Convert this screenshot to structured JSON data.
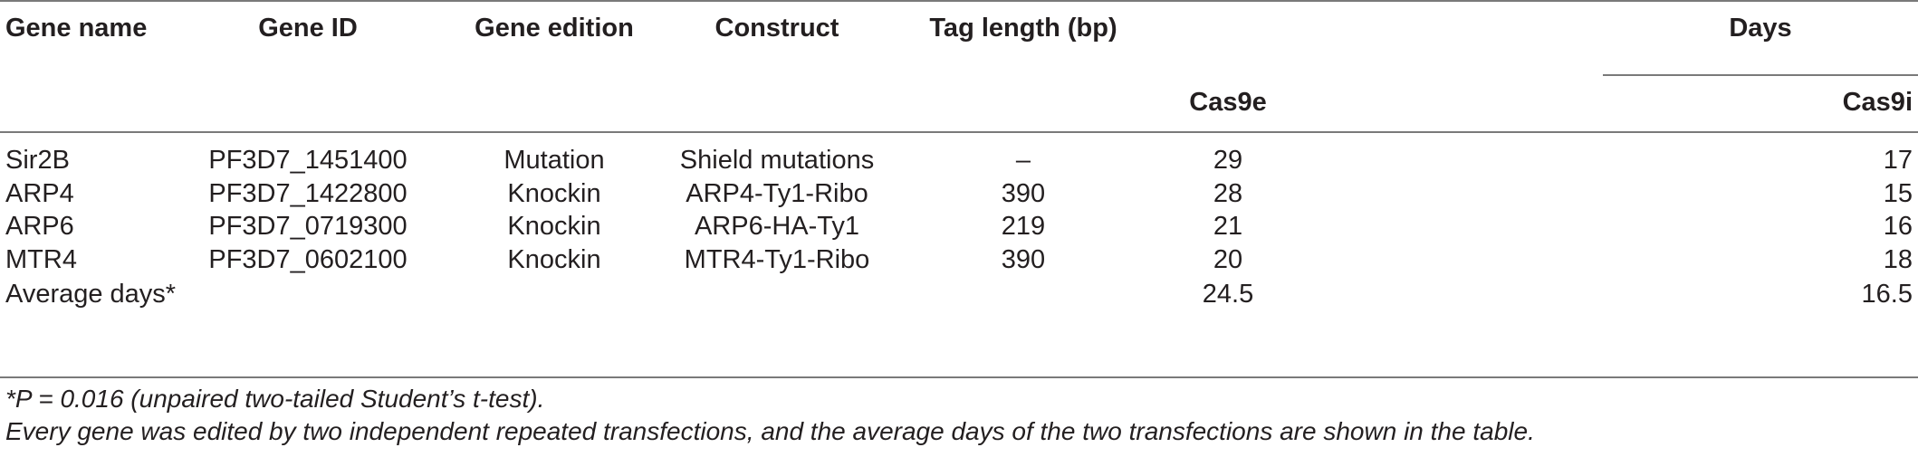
{
  "table": {
    "headers": {
      "gene_name": "Gene name",
      "gene_id": "Gene ID",
      "gene_edition": "Gene edition",
      "construct": "Construct",
      "tag_length": "Tag length (bp)",
      "days": "Days",
      "cas9e": "Cas9e",
      "cas9i": "Cas9i"
    },
    "rows": [
      {
        "gene_name": "Sir2B",
        "gene_id": "PF3D7_1451400",
        "gene_edition": "Mutation",
        "construct": "Shield mutations",
        "tag_length": "–",
        "cas9e": "29",
        "cas9i": "17"
      },
      {
        "gene_name": "ARP4",
        "gene_id": "PF3D7_1422800",
        "gene_edition": "Knockin",
        "construct": "ARP4-Ty1-Ribo",
        "tag_length": "390",
        "cas9e": "28",
        "cas9i": "15"
      },
      {
        "gene_name": "ARP6",
        "gene_id": "PF3D7_0719300",
        "gene_edition": "Knockin",
        "construct": "ARP6-HA-Ty1",
        "tag_length": "219",
        "cas9e": "21",
        "cas9i": "16"
      },
      {
        "gene_name": "MTR4",
        "gene_id": "PF3D7_0602100",
        "gene_edition": "Knockin",
        "construct": "MTR4-Ty1-Ribo",
        "tag_length": "390",
        "cas9e": "20",
        "cas9i": "18"
      }
    ],
    "average": {
      "label": "Average days*",
      "cas9e": "24.5",
      "cas9i": "16.5"
    }
  },
  "footnotes": {
    "stat": "*P = 0.016 (unpaired two-tailed Student’s t-test).",
    "note": "Every gene was edited by two independent repeated transfections, and the average days of the two transfections are shown in the table."
  }
}
